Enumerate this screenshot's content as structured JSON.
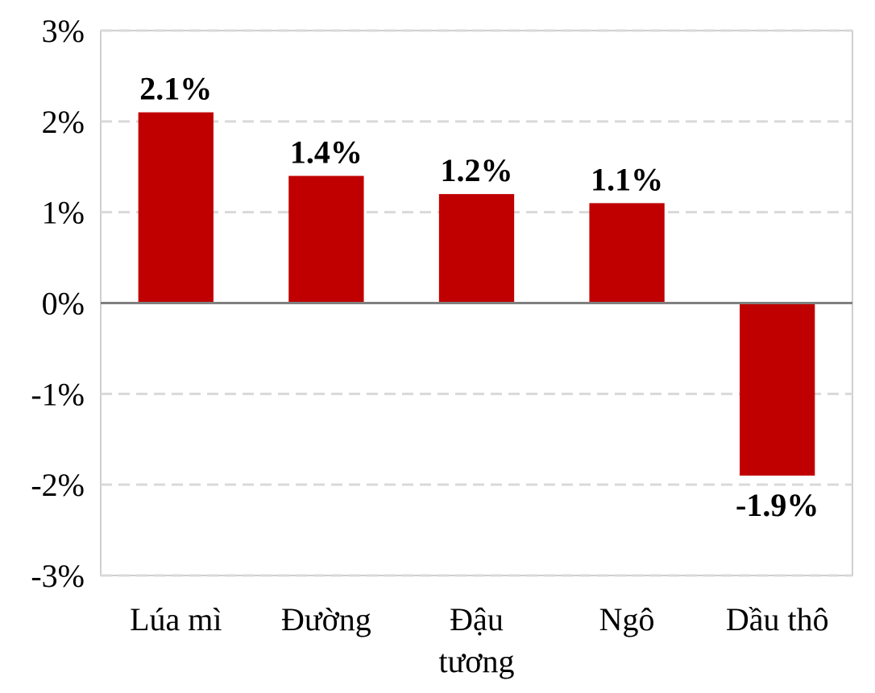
{
  "chart_data": {
    "type": "bar",
    "title": "",
    "xlabel": "",
    "ylabel": "",
    "categories": [
      [
        "Lúa mì"
      ],
      [
        "Đường"
      ],
      [
        "Đậu",
        "tương"
      ],
      [
        "Ngô"
      ],
      [
        "Dầu thô"
      ]
    ],
    "values": [
      2.1,
      1.4,
      1.2,
      1.1,
      -1.9
    ],
    "data_labels": [
      "2.1%",
      "1.4%",
      "1.2%",
      "1.1%",
      "-1.9%"
    ],
    "ylim": [
      -3,
      3
    ],
    "yticks": [
      3,
      2,
      1,
      0,
      -1,
      -2,
      -3
    ],
    "ytick_labels": [
      "3%",
      "2%",
      "1%",
      "0%",
      "-1%",
      "-2%",
      "-3%"
    ],
    "grid": true,
    "grid_style": "dashed",
    "legend": "none",
    "colors": {
      "bar": "#c00000",
      "grid": "#d9d9d9",
      "zero_line": "#808080",
      "frame": "#bfbfbf"
    }
  }
}
